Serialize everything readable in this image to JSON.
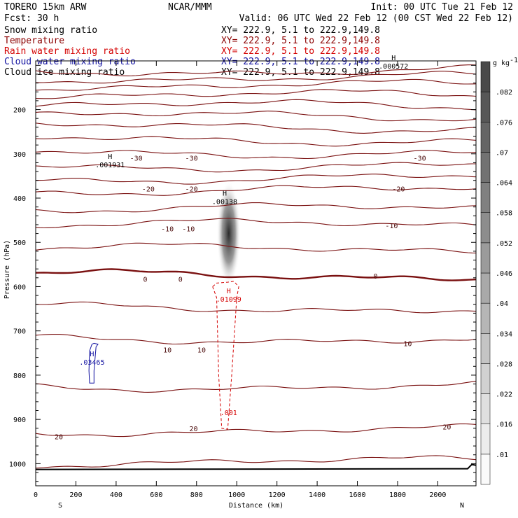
{
  "header": {
    "model": "TORERO  15km ARW",
    "center": "NCAR/MMM",
    "init": "Init: 00 UTC Tue 21 Feb 12",
    "fcst": "Fcst:   30 h",
    "valid": "Valid: 06 UTC Wed 22 Feb 12 (00 CST Wed 22 Feb 12)"
  },
  "legend": [
    {
      "name": "Snow mixing ratio",
      "xy": "XY= 222.9,  5.1 to 222.9,149.8",
      "color": "#000000"
    },
    {
      "name": "Temperature",
      "xy": "XY= 222.9,  5.1 to 222.9,149.8",
      "color": "#8b0000"
    },
    {
      "name": "Rain water mixing ratio",
      "xy": "XY= 222.9,  5.1 to 222.9,149.8",
      "color": "#d40000"
    },
    {
      "name": "Cloud water mixing ratio",
      "xy": "XY= 222.9,  5.1 to 222.9,149.8",
      "color": "#1010a0"
    },
    {
      "name": "Cloud ice mixing ratio",
      "xy": "XY= 222.9,  5.1 to 222.9,149.8",
      "color": "#000000"
    }
  ],
  "chart_data": {
    "type": "contour",
    "title": "Cross section",
    "xlabel": "Distance (km)",
    "ylabel": "Pressure (hPa)",
    "xlim": [
      0,
      2190
    ],
    "ylim": [
      1050,
      90
    ],
    "x_ticks": [
      0,
      200,
      400,
      600,
      800,
      1000,
      1200,
      1400,
      1600,
      1800,
      2000
    ],
    "y_ticks": [
      200,
      300,
      400,
      500,
      600,
      700,
      800,
      900,
      1000
    ],
    "direction_left": "S",
    "direction_right": "N",
    "colorbar": {
      "unit": "g kg",
      "unit_exp": "-1",
      "ticks": [
        ".01",
        ".016",
        ".022",
        ".028",
        ".034",
        ".04",
        ".046",
        ".052",
        ".058",
        ".064",
        ".07",
        ".076",
        ".082"
      ]
    },
    "temperature_isotherms": [
      {
        "value": -50,
        "p_start": 112,
        "thick": false
      },
      {
        "value": -50,
        "p_start": 128,
        "thick": false
      },
      {
        "value": -50,
        "p_start": 146,
        "thick": false
      },
      {
        "value": -45,
        "p_start": 168,
        "thick": false
      },
      {
        "value": -40,
        "p_start": 191,
        "thick": false
      },
      {
        "value": -40,
        "p_start": 215,
        "thick": false
      },
      {
        "value": -35,
        "p_start": 240,
        "thick": false
      },
      {
        "value": -35,
        "p_start": 268,
        "thick": false
      },
      {
        "value": -30,
        "p_start": 297,
        "thick": false
      },
      {
        "value": -30,
        "p_start": 327,
        "thick": false
      },
      {
        "value": -25,
        "p_start": 355,
        "thick": false
      },
      {
        "value": -20,
        "p_start": 383,
        "thick": false
      },
      {
        "value": -15,
        "p_start": 424,
        "thick": false
      },
      {
        "value": -10,
        "p_start": 460,
        "thick": false
      },
      {
        "value": -5,
        "p_start": 515,
        "thick": false
      },
      {
        "value": 0,
        "p_start": 575,
        "thick": true
      },
      {
        "value": 5,
        "p_start": 648,
        "thick": false
      },
      {
        "value": 10,
        "p_start": 718,
        "thick": false
      },
      {
        "value": 15,
        "p_start": 825,
        "thick": false
      },
      {
        "value": 20,
        "p_start": 925,
        "thick": false
      },
      {
        "value": 25,
        "p_start": 996,
        "thick": false
      }
    ],
    "isotherm_labels": [
      {
        "text": "-30",
        "km": 500,
        "p": 311
      },
      {
        "text": "-30",
        "km": 775,
        "p": 311
      },
      {
        "text": "-30",
        "km": 1910,
        "p": 311
      },
      {
        "text": "-20",
        "km": 560,
        "p": 380
      },
      {
        "text": "-20",
        "km": 775,
        "p": 380
      },
      {
        "text": "-20",
        "km": 1805,
        "p": 380
      },
      {
        "text": "-10",
        "km": 655,
        "p": 470
      },
      {
        "text": "-10",
        "km": 760,
        "p": 470
      },
      {
        "text": "-10",
        "km": 1770,
        "p": 463
      },
      {
        "text": "0",
        "km": 545,
        "p": 584
      },
      {
        "text": "0",
        "km": 720,
        "p": 584
      },
      {
        "text": "0",
        "km": 1690,
        "p": 577
      },
      {
        "text": "10",
        "km": 655,
        "p": 744
      },
      {
        "text": "10",
        "km": 825,
        "p": 744
      },
      {
        "text": "10",
        "km": 1850,
        "p": 730
      },
      {
        "text": "20",
        "km": 115,
        "p": 940
      },
      {
        "text": "20",
        "km": 785,
        "p": 922
      },
      {
        "text": "20",
        "km": 2045,
        "p": 918
      }
    ],
    "extrema_labels": [
      {
        "symbol": "H",
        "value": ".001931",
        "km": 370,
        "p": 327,
        "color": "#000000"
      },
      {
        "symbol": "H",
        "value": ".00138",
        "km": 940,
        "p": 410,
        "color": "#000000"
      },
      {
        "symbol": "H",
        "value": ".01099",
        "km": 960,
        "p": 631,
        "color": "#d40000"
      },
      {
        "symbol": "H",
        "value": ".03465",
        "km": 280,
        "p": 773,
        "color": "#1010a0"
      },
      {
        "symbol": "",
        "value": ".001",
        "km": 960,
        "p": 887,
        "color": "#d40000"
      },
      {
        "symbol": "H",
        "value": ".000572",
        "km": 1780,
        "p": 104,
        "color": "#000000"
      }
    ],
    "snow_shading": {
      "km_center": 960,
      "p_top": 380,
      "p_bottom": 580,
      "max_value": ".082"
    },
    "surface_pressure": 1013
  }
}
